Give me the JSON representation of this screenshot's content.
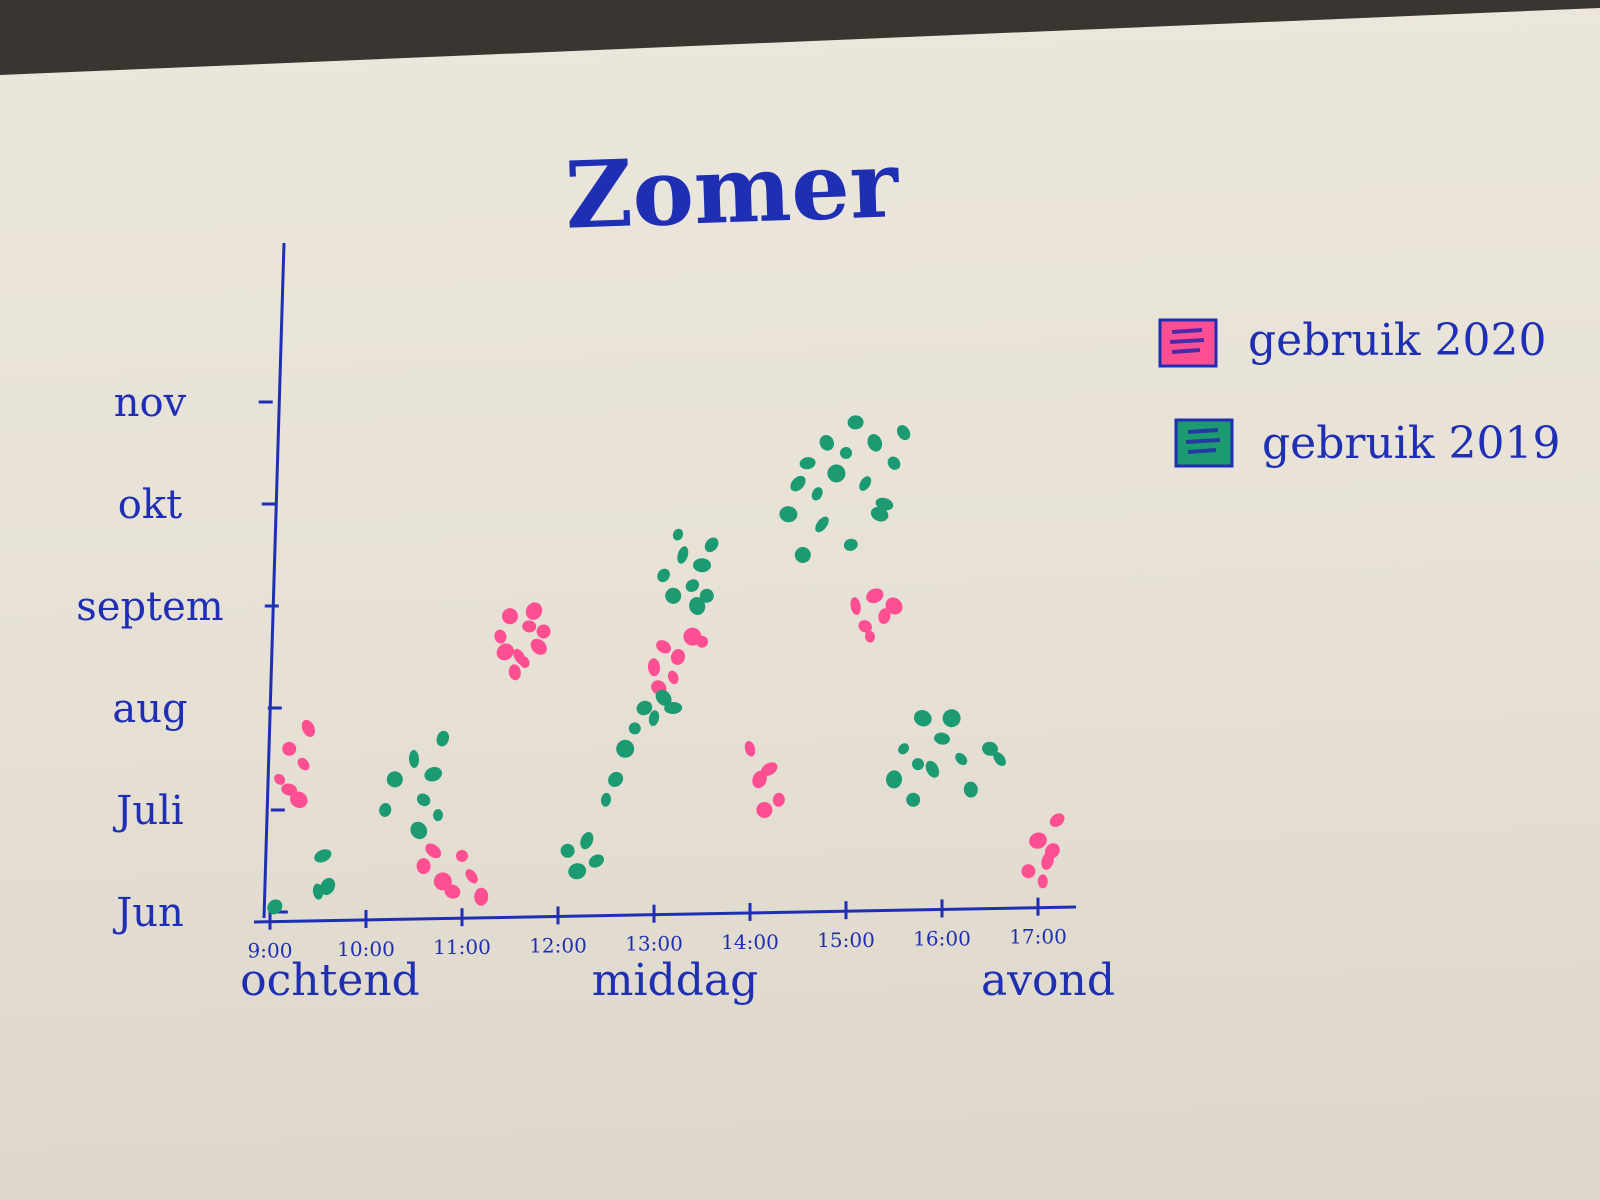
{
  "chart_data": {
    "type": "scatter",
    "title": "Zomer",
    "x_ticks": [
      "9:00",
      "10:00",
      "11:00",
      "12:00",
      "13:00",
      "14:00",
      "15:00",
      "16:00",
      "17:00"
    ],
    "x_periods": [
      "ochtend",
      "middag",
      "avond"
    ],
    "y_ticks": [
      "Jun",
      "Juli",
      "aug",
      "septem",
      "okt",
      "nov"
    ],
    "legend_placement": "right",
    "grid": false,
    "colors": {
      "ink": "#1e2fb4",
      "gebruik_2020": "#ff4f93",
      "gebruik_2019": "#1c9a72"
    },
    "series": [
      {
        "name": "gebruik 2020",
        "color": "#ff4f93",
        "points": [
          [
            9.1,
            1.3
          ],
          [
            9.2,
            1.6
          ],
          [
            9.3,
            1.1
          ],
          [
            9.4,
            1.8
          ],
          [
            9.2,
            1.2
          ],
          [
            9.35,
            1.45
          ],
          [
            10.6,
            0.45
          ],
          [
            10.8,
            0.3
          ],
          [
            11.0,
            0.55
          ],
          [
            10.9,
            0.2
          ],
          [
            11.1,
            0.35
          ],
          [
            11.2,
            0.15
          ],
          [
            10.7,
            0.6
          ],
          [
            11.4,
            2.7
          ],
          [
            11.5,
            2.9
          ],
          [
            11.6,
            2.5
          ],
          [
            11.7,
            2.8
          ],
          [
            11.8,
            2.6
          ],
          [
            11.55,
            2.35
          ],
          [
            11.75,
            2.95
          ],
          [
            11.65,
            2.45
          ],
          [
            11.85,
            2.75
          ],
          [
            11.45,
            2.55
          ],
          [
            13.0,
            2.4
          ],
          [
            13.1,
            2.6
          ],
          [
            13.2,
            2.3
          ],
          [
            13.25,
            2.5
          ],
          [
            13.4,
            2.7
          ],
          [
            13.5,
            2.65
          ],
          [
            13.05,
            2.2
          ],
          [
            14.0,
            1.6
          ],
          [
            14.1,
            1.3
          ],
          [
            14.2,
            1.4
          ],
          [
            14.3,
            1.1
          ],
          [
            14.15,
            1.0
          ],
          [
            15.1,
            3.0
          ],
          [
            15.2,
            2.8
          ],
          [
            15.3,
            3.1
          ],
          [
            15.4,
            2.9
          ],
          [
            15.5,
            3.0
          ],
          [
            15.25,
            2.7
          ],
          [
            16.9,
            0.4
          ],
          [
            17.0,
            0.7
          ],
          [
            17.1,
            0.5
          ],
          [
            17.2,
            0.9
          ],
          [
            17.05,
            0.3
          ],
          [
            17.15,
            0.6
          ]
        ]
      },
      {
        "name": "gebruik 2019",
        "color": "#1c9a72",
        "points": [
          [
            9.05,
            0.05
          ],
          [
            9.5,
            0.2
          ],
          [
            9.6,
            0.25
          ],
          [
            9.55,
            0.55
          ],
          [
            10.2,
            1.0
          ],
          [
            10.3,
            1.3
          ],
          [
            10.5,
            1.5
          ],
          [
            10.6,
            1.1
          ],
          [
            10.7,
            1.35
          ],
          [
            10.8,
            1.7
          ],
          [
            10.55,
            0.8
          ],
          [
            10.75,
            0.95
          ],
          [
            12.1,
            0.6
          ],
          [
            12.2,
            0.4
          ],
          [
            12.3,
            0.7
          ],
          [
            12.4,
            0.5
          ],
          [
            12.5,
            1.1
          ],
          [
            12.6,
            1.3
          ],
          [
            12.7,
            1.6
          ],
          [
            12.8,
            1.8
          ],
          [
            12.9,
            2.0
          ],
          [
            13.0,
            1.9
          ],
          [
            13.1,
            2.1
          ],
          [
            13.2,
            2.0
          ],
          [
            13.1,
            3.3
          ],
          [
            13.2,
            3.1
          ],
          [
            13.3,
            3.5
          ],
          [
            13.4,
            3.2
          ],
          [
            13.5,
            3.4
          ],
          [
            13.6,
            3.6
          ],
          [
            13.45,
            3.0
          ],
          [
            13.25,
            3.7
          ],
          [
            13.55,
            3.1
          ],
          [
            14.4,
            3.9
          ],
          [
            14.5,
            4.2
          ],
          [
            14.6,
            4.4
          ],
          [
            14.7,
            4.1
          ],
          [
            14.8,
            4.6
          ],
          [
            14.9,
            4.3
          ],
          [
            15.0,
            4.5
          ],
          [
            15.1,
            4.8
          ],
          [
            15.2,
            4.2
          ],
          [
            15.3,
            4.6
          ],
          [
            15.4,
            4.0
          ],
          [
            15.5,
            4.4
          ],
          [
            14.55,
            3.5
          ],
          [
            14.75,
            3.8
          ],
          [
            15.05,
            3.6
          ],
          [
            15.35,
            3.9
          ],
          [
            15.6,
            4.7
          ],
          [
            15.5,
            1.3
          ],
          [
            15.6,
            1.6
          ],
          [
            15.7,
            1.1
          ],
          [
            15.8,
            1.9
          ],
          [
            15.9,
            1.4
          ],
          [
            16.0,
            1.7
          ],
          [
            16.2,
            1.5
          ],
          [
            16.3,
            1.2
          ],
          [
            16.1,
            1.9
          ],
          [
            15.75,
            1.45
          ],
          [
            16.5,
            1.6
          ],
          [
            16.6,
            1.5
          ]
        ]
      }
    ]
  }
}
